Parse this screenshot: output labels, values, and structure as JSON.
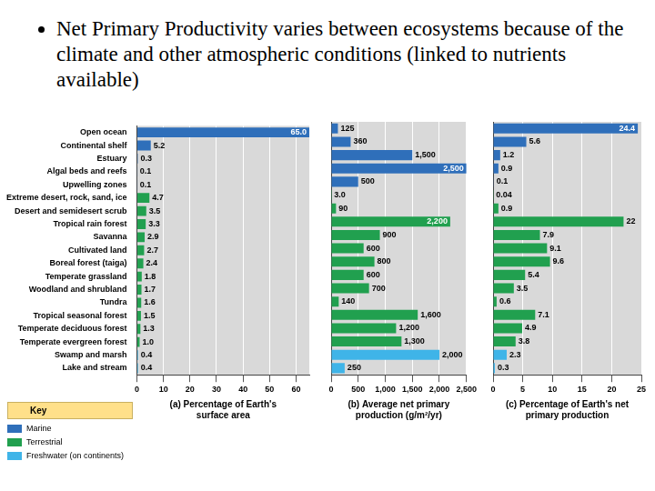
{
  "slide_text": "Net Primary Productivity varies between ecosystems because of the climate and other atmospheric conditions (linked to nutrients available)",
  "key": {
    "title": "Key",
    "entries": [
      {
        "name": "Marine",
        "color": "#2f6fba"
      },
      {
        "name": "Terrestrial",
        "color": "#21a04f"
      },
      {
        "name": "Freshwater (on continents)",
        "color": "#3fb4e8"
      }
    ]
  },
  "chart_data": [
    {
      "type": "bar",
      "orientation": "horizontal",
      "x_label": "(a) Percentage of Earth's surface area",
      "categories": [
        "Open ocean",
        "Continental shelf",
        "Estuary",
        "Algal beds and reefs",
        "Upwelling zones",
        "Extreme desert, rock, sand, ice",
        "Desert and semidesert scrub",
        "Tropical rain forest",
        "Savanna",
        "Cultivated land",
        "Boreal forest (taiga)",
        "Temperate grassland",
        "Woodland and shrubland",
        "Tundra",
        "Tropical seasonal forest",
        "Temperate deciduous forest",
        "Temperate evergreen forest",
        "Swamp and marsh",
        "Lake and stream"
      ],
      "values": [
        65.0,
        5.2,
        0.3,
        0.1,
        0.1,
        4.7,
        3.5,
        3.3,
        2.9,
        2.7,
        2.4,
        1.8,
        1.7,
        1.6,
        1.5,
        1.3,
        1.0,
        0.4,
        0.4
      ],
      "value_labels": [
        "65.0",
        "5.2",
        "0.3",
        "0.1",
        "0.1",
        "4.7",
        "3.5",
        "3.3",
        "2.9",
        "2.7",
        "2.4",
        "1.8",
        "1.7",
        "1.6",
        "1.5",
        "1.3",
        "1.0",
        "0.4",
        "0.4"
      ],
      "colors": [
        "#2f6fba",
        "#2f6fba",
        "#2f6fba",
        "#2f6fba",
        "#2f6fba",
        "#21a04f",
        "#21a04f",
        "#21a04f",
        "#21a04f",
        "#21a04f",
        "#21a04f",
        "#21a04f",
        "#21a04f",
        "#21a04f",
        "#21a04f",
        "#21a04f",
        "#21a04f",
        "#3fb4e8",
        "#3fb4e8"
      ],
      "xlim": [
        0,
        65
      ],
      "xticks": [
        0,
        10,
        20,
        30,
        40,
        50,
        60
      ],
      "grid": true,
      "data_labels": true
    },
    {
      "type": "bar",
      "orientation": "horizontal",
      "x_label": "(b) Average net primary production (g/m²/yr)",
      "categories": [
        "Open ocean",
        "Continental shelf",
        "Estuary",
        "Algal beds and reefs",
        "Upwelling zones",
        "Extreme desert, rock, sand, ice",
        "Desert and semidesert scrub",
        "Tropical rain forest",
        "Savanna",
        "Cultivated land",
        "Boreal forest (taiga)",
        "Temperate grassland",
        "Woodland and shrubland",
        "Tundra",
        "Tropical seasonal forest",
        "Temperate deciduous forest",
        "Temperate evergreen forest",
        "Swamp and marsh",
        "Lake and stream"
      ],
      "values": [
        125,
        360,
        1500,
        2500,
        500,
        3.0,
        90,
        2200,
        900,
        600,
        800,
        600,
        700,
        140,
        1600,
        1200,
        1300,
        2000,
        250
      ],
      "value_labels": [
        "125",
        "360",
        "1,500",
        "2,500",
        "500",
        "3.0",
        "90",
        "2,200",
        "900",
        "600",
        "800",
        "600",
        "700",
        "140",
        "1,600",
        "1,200",
        "1,300",
        "2,000",
        "250"
      ],
      "colors": [
        "#2f6fba",
        "#2f6fba",
        "#2f6fba",
        "#2f6fba",
        "#2f6fba",
        "#21a04f",
        "#21a04f",
        "#21a04f",
        "#21a04f",
        "#21a04f",
        "#21a04f",
        "#21a04f",
        "#21a04f",
        "#21a04f",
        "#21a04f",
        "#21a04f",
        "#21a04f",
        "#3fb4e8",
        "#3fb4e8"
      ],
      "xlim": [
        0,
        2500
      ],
      "xticks": [
        0,
        500,
        {
          "value": 1000,
          "label": "1,000"
        },
        {
          "value": 1500,
          "label": "1,500"
        },
        {
          "value": 2000,
          "label": "2,000"
        },
        {
          "value": 2500,
          "label": "2,500"
        }
      ],
      "grid": true,
      "data_labels": true,
      "tick_labels": "x"
    },
    {
      "type": "bar",
      "orientation": "horizontal",
      "x_label": "(c) Percentage of Earth's net primary production",
      "categories": [
        "Open ocean",
        "Continental shelf",
        "Estuary",
        "Algal beds and reefs",
        "Upwelling zones",
        "Extreme desert, rock, sand, ice",
        "Desert and semidesert scrub",
        "Tropical rain forest",
        "Savanna",
        "Cultivated land",
        "Boreal forest (taiga)",
        "Temperate grassland",
        "Woodland and shrubland",
        "Tundra",
        "Tropical seasonal forest",
        "Temperate deciduous forest",
        "Temperate evergreen forest",
        "Swamp and marsh",
        "Lake and stream"
      ],
      "values": [
        24.4,
        5.6,
        1.2,
        0.9,
        0.1,
        0.04,
        0.9,
        22,
        7.9,
        9.1,
        9.6,
        5.4,
        3.5,
        0.6,
        7.1,
        4.9,
        3.8,
        2.3,
        0.3
      ],
      "colors": [
        "#2f6fba",
        "#2f6fba",
        "#2f6fba",
        "#2f6fba",
        "#2f6fba",
        "#21a04f",
        "#21a04f",
        "#21a04f",
        "#21a04f",
        "#21a04f",
        "#21a04f",
        "#21a04f",
        "#21a04f",
        "#21a04f",
        "#21a04f",
        "#21a04f",
        "#21a04f",
        "#3fb4e8",
        "#3fb4e8"
      ],
      "xlim": [
        0,
        25
      ],
      "xticks": [
        0,
        5,
        10,
        15,
        20,
        25
      ],
      "grid": true,
      "data_labels": true,
      "tick_labels": "x"
    }
  ]
}
